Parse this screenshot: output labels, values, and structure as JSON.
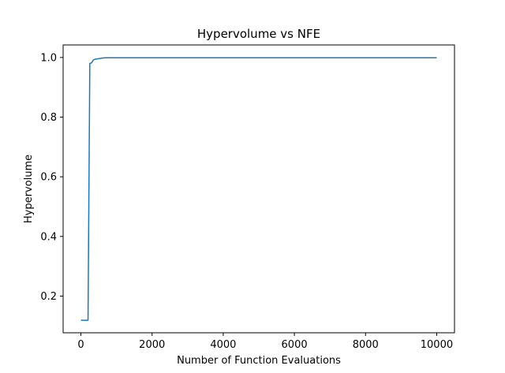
{
  "chart_data": {
    "type": "line",
    "title": "Hypervolume vs NFE",
    "xlabel": "Number of Function Evaluations",
    "ylabel": "Hypervolume",
    "xlim": [
      -500,
      10500
    ],
    "ylim": [
      0.077,
      1.042
    ],
    "xticks": [
      0,
      2000,
      4000,
      6000,
      8000,
      10000
    ],
    "xtick_labels": [
      "0",
      "2000",
      "4000",
      "6000",
      "8000",
      "10000"
    ],
    "yticks": [
      0.2,
      0.4,
      0.6,
      0.8,
      1.0
    ],
    "ytick_labels": [
      "0.2",
      "0.4",
      "0.6",
      "0.8",
      "1.0"
    ],
    "grid": false,
    "series": [
      {
        "color": "#1f77b4",
        "x": [
          0,
          100,
          200,
          250,
          300,
          350,
          400,
          450,
          500,
          600,
          700,
          800,
          1000,
          2000,
          4000,
          6000,
          8000,
          10000
        ],
        "y": [
          0.119,
          0.119,
          0.119,
          0.98,
          0.982,
          0.992,
          0.994,
          0.995,
          0.996,
          0.998,
          0.999,
          0.999,
          0.999,
          0.999,
          0.999,
          0.999,
          0.999,
          0.999
        ]
      }
    ]
  }
}
